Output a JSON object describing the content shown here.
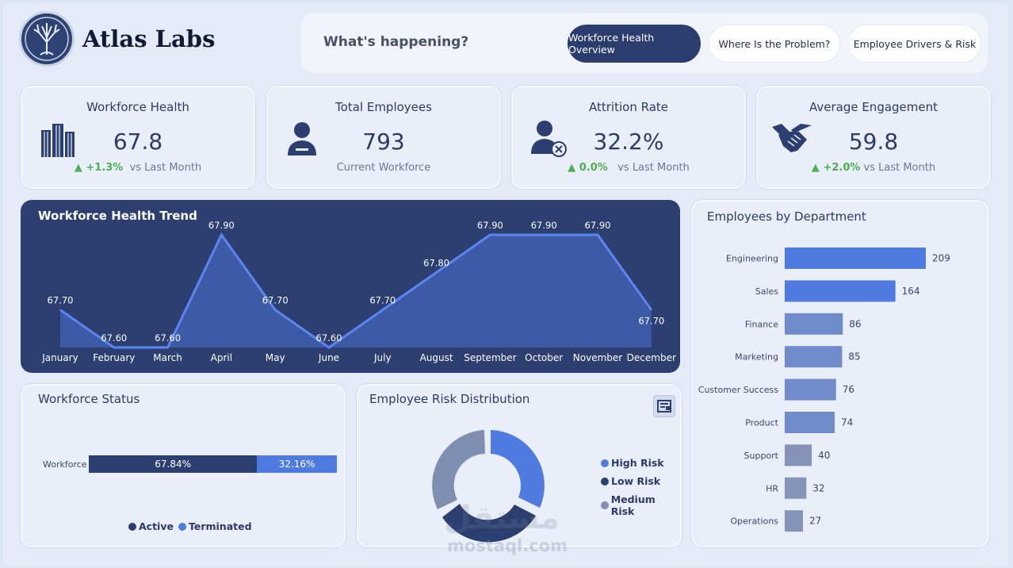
{
  "brand": {
    "name": "Atlas Labs",
    "logo_icon": "tree-logo-icon"
  },
  "nav": {
    "question": "What's happening?",
    "tabs": [
      {
        "label": "Workforce Health Overview",
        "active": true
      },
      {
        "label": "Where Is the Problem?",
        "active": false
      },
      {
        "label": "Employee Drivers & Risk",
        "active": false
      }
    ]
  },
  "kpis": [
    {
      "title": "Workforce Health",
      "value": "67.8",
      "delta": "+1.3%",
      "note": "vs Last Month",
      "icon": "buildings-icon"
    },
    {
      "title": "Total Employees",
      "value": "793",
      "note": "Current Workforce",
      "icon": "employee-icon"
    },
    {
      "title": "Attrition Rate",
      "value": "32.2%",
      "delta": "0.0%",
      "note": "vs Last Month",
      "icon": "employee-remove-icon"
    },
    {
      "title": "Average Engagement",
      "value": "59.8",
      "delta": "+2.0%",
      "note": "vs Last Month",
      "icon": "handshake-icon"
    }
  ],
  "trend": {
    "title": "Workforce Health Trend"
  },
  "departments": {
    "title": "Employees by Department"
  },
  "status": {
    "title": "Workforce Status",
    "row_label": "Workforce",
    "active_label": "67.84%",
    "terminated_label": "32.16%",
    "legend": [
      "Active",
      "Terminated"
    ]
  },
  "risk": {
    "title": "Employee Risk Distribution",
    "legend": [
      "High Risk",
      "Low Risk",
      "Medium Risk"
    ]
  },
  "colors": {
    "navy": "#2c3f70",
    "blue": "#4f7be0",
    "slate": "#7f8fb1",
    "up_green": "#4caf50"
  },
  "watermark": {
    "arabic": "مستقل",
    "latin": "mostaql.com"
  },
  "chart_data": [
    {
      "type": "area",
      "title": "Workforce Health Trend",
      "categories": [
        "January",
        "February",
        "March",
        "April",
        "May",
        "June",
        "July",
        "August",
        "September",
        "October",
        "November",
        "December"
      ],
      "values": [
        67.7,
        67.6,
        67.6,
        67.9,
        67.7,
        67.6,
        67.7,
        67.8,
        67.9,
        67.9,
        67.9,
        67.7
      ],
      "labels": [
        "67.70",
        "67.60",
        "67.60",
        "67.90",
        "67.70",
        "67.60",
        "67.70",
        "67.80",
        "67.90",
        "67.90",
        "67.90",
        "67.70"
      ]
    },
    {
      "type": "bar",
      "title": "Employees by Department",
      "categories": [
        "Engineering",
        "Sales",
        "Finance",
        "Marketing",
        "Customer Success",
        "Product",
        "Support",
        "HR",
        "Operations"
      ],
      "values": [
        209,
        164,
        86,
        85,
        76,
        74,
        40,
        32,
        27
      ]
    },
    {
      "type": "bar",
      "title": "Workforce Status",
      "categories": [
        "Workforce"
      ],
      "series": [
        {
          "name": "Active",
          "values": [
            67.84
          ]
        },
        {
          "name": "Terminated",
          "values": [
            32.16
          ]
        }
      ]
    },
    {
      "type": "pie",
      "title": "Employee Risk Distribution",
      "categories": [
        "High Risk",
        "Low Risk",
        "Medium Risk"
      ],
      "values": [
        1,
        1,
        1
      ]
    }
  ]
}
